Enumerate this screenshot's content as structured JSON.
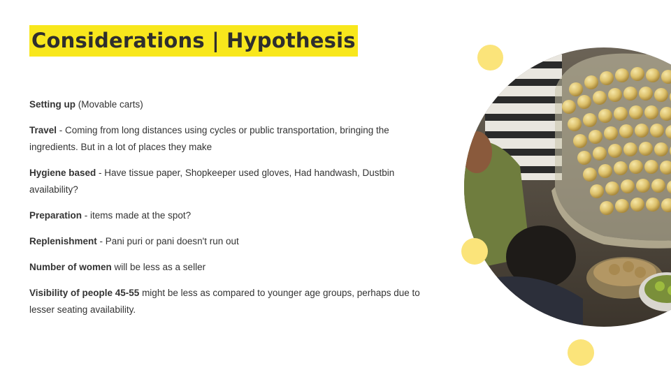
{
  "slide": {
    "title": "Considerations | Hypothesis",
    "items": [
      {
        "label": "Setting up",
        "text": " (Movable carts)"
      },
      {
        "label": "Travel",
        "text": " - Coming from long distances using cycles or public transportation, bringing the ingredients. But in a lot of places they make"
      },
      {
        "label": "Hygiene based",
        "text": " - Have tissue paper, Shopkeeper used gloves, Had handwash, Dustbin availability?"
      },
      {
        "label": "Preparation",
        "text": " - items made at the spot?"
      },
      {
        "label": "Replenishment",
        "text": " - Pani puri or pani doesn't run out"
      },
      {
        "label": "Number of women",
        "text": " will be less as a seller"
      },
      {
        "label": "Visibility of people 45-55",
        "text": " might be less as compared to younger age groups, perhaps due to lesser seating availability."
      }
    ],
    "colors": {
      "title_highlight": "#f8e71c",
      "accent_dot": "#fbe47a",
      "text": "#333333"
    },
    "image": {
      "icon": "pani-puri-stall-photo"
    }
  }
}
